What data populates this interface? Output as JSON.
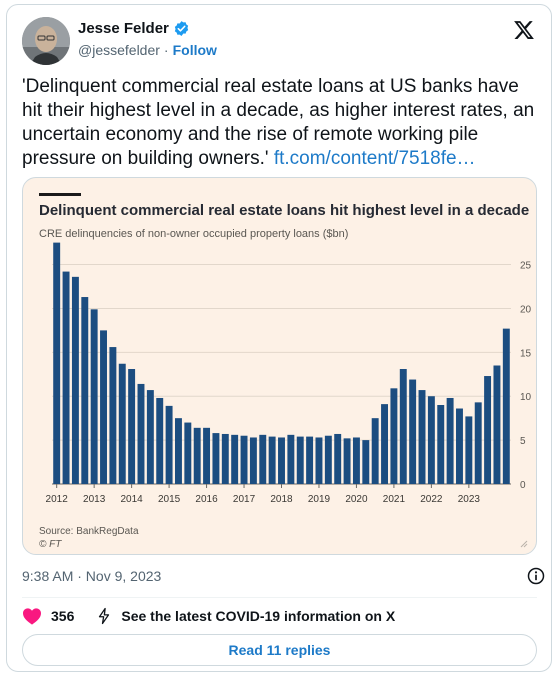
{
  "author": {
    "name": "Jesse Felder",
    "handle": "@jessefelder",
    "separator": "·",
    "follow_label": "Follow"
  },
  "tweet": {
    "text": "'Delinquent commercial real estate loans at US banks have hit their highest level in a decade, as higher interest rates, an uncertain economy and the rise of remote working pile pressure on building owners.' ",
    "link_text": "ft.com/content/7518fe…"
  },
  "chart_card": {
    "title": "Delinquent commercial real estate loans hit highest level in a decade",
    "subtitle": "CRE delinquencies of non-owner occupied property loans ($bn)",
    "source": "Source: BankRegData",
    "credit": "© FT"
  },
  "chart_data": {
    "type": "bar",
    "title": "Delinquent commercial real estate loans hit highest level in a decade",
    "subtitle": "CRE delinquencies of non-owner occupied property loans ($bn)",
    "xlabel": "",
    "ylabel": "",
    "ylim": [
      0,
      27
    ],
    "y_ticks": [
      0,
      5,
      10,
      15,
      20,
      25
    ],
    "x_tick_labels": [
      "2012",
      "2013",
      "2014",
      "2015",
      "2016",
      "2017",
      "2018",
      "2019",
      "2020",
      "2021",
      "2022",
      "2023"
    ],
    "periods_per_year": 4,
    "start_year": 2012,
    "bar_color": "#1c4d80",
    "grid": true,
    "values": [
      27.5,
      24.2,
      23.6,
      21.3,
      19.9,
      17.5,
      15.6,
      13.7,
      13.1,
      11.4,
      10.7,
      9.8,
      8.9,
      7.5,
      7.0,
      6.4,
      6.4,
      5.8,
      5.7,
      5.6,
      5.5,
      5.3,
      5.6,
      5.4,
      5.3,
      5.6,
      5.4,
      5.4,
      5.3,
      5.5,
      5.7,
      5.2,
      5.3,
      5.0,
      7.5,
      9.1,
      10.9,
      13.1,
      11.9,
      10.7,
      10.0,
      9.0,
      9.8,
      8.6,
      7.7,
      9.3,
      12.3,
      13.5,
      17.7
    ]
  },
  "meta": {
    "timestamp": "9:38 AM · Nov 9, 2023"
  },
  "actions": {
    "like_count": "356",
    "covid_label": "See the latest COVID-19 information on X"
  },
  "replies_button": {
    "label": "Read 11 replies"
  },
  "icons": {
    "verified": "verified-badge-icon",
    "x_logo": "x-logo-icon",
    "info": "info-icon",
    "like": "heart-icon",
    "covid": "lightning-icon"
  },
  "colors": {
    "link": "#1d7ac8",
    "verified": "#1d9bf0",
    "like": "#f91880",
    "chart_bg": "#fdf1e6",
    "bar": "#1c4d80"
  }
}
